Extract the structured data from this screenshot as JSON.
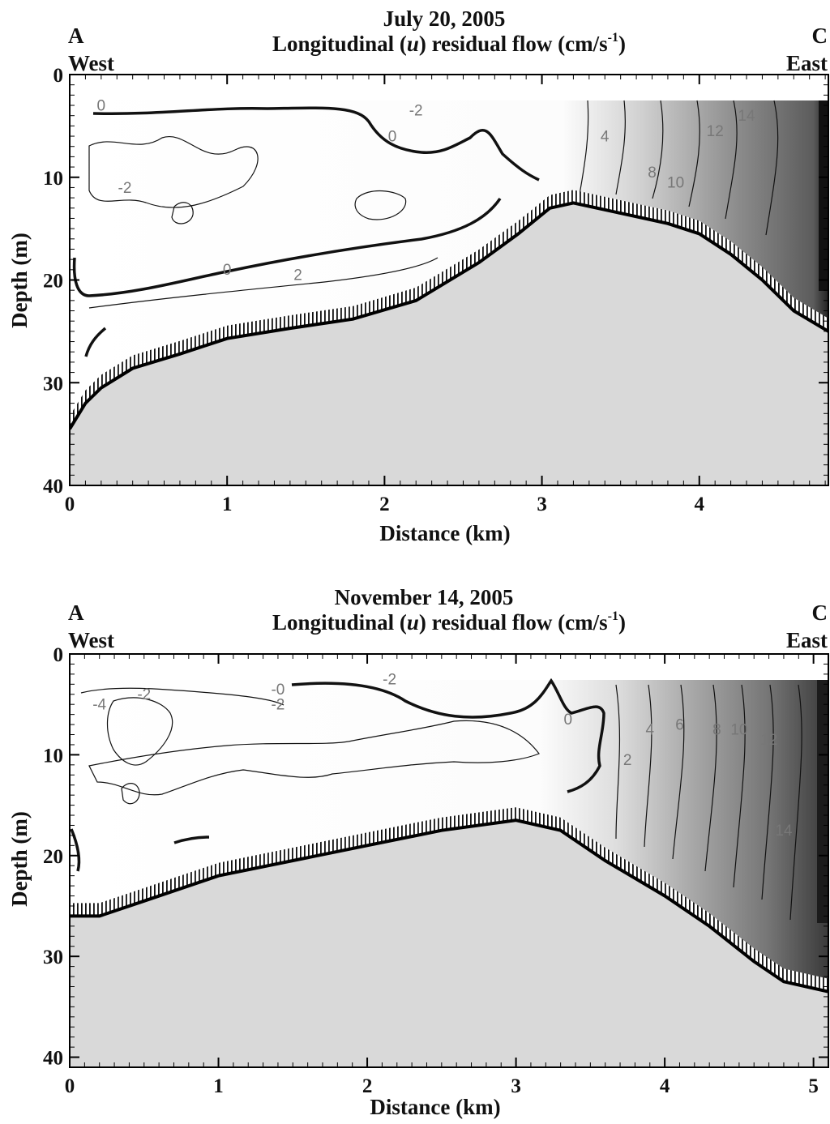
{
  "chart_data": [
    {
      "type": "heatmap",
      "subtype": "contour section",
      "title": "July 20, 2005",
      "subtitle_parts": [
        "Longitudinal (",
        "u",
        ") residual flow (cm/s",
        "-1",
        ")"
      ],
      "xlabel": "Distance (km)",
      "ylabel": "Depth (m)",
      "xlim": [
        0,
        4.82
      ],
      "ylim": [
        0,
        40
      ],
      "y_inverted": true,
      "xticks": [
        0,
        1,
        2,
        3,
        4
      ],
      "yticks": [
        0,
        10,
        20,
        30,
        40
      ],
      "corner_labels": {
        "left_top": "A",
        "left_bottom": "West",
        "right_top": "C",
        "right_bottom": "East"
      },
      "data_top_depth": 2.5,
      "bottom_profile": {
        "x": [
          0,
          0.1,
          0.2,
          0.4,
          0.7,
          1.0,
          1.4,
          1.8,
          2.2,
          2.6,
          2.85,
          3.05,
          3.2,
          3.5,
          3.8,
          4.0,
          4.2,
          4.4,
          4.6,
          4.82
        ],
        "depth": [
          34.5,
          32,
          30.5,
          28.6,
          27.2,
          25.7,
          24.7,
          23.8,
          22,
          18.3,
          15.5,
          13,
          12.5,
          13.5,
          14.5,
          15.5,
          17.5,
          20,
          23,
          25
        ]
      },
      "contour_labels": [
        {
          "value": "0",
          "x": 0.2,
          "depth": 3.5
        },
        {
          "value": "-2",
          "x": 0.35,
          "depth": 11.5
        },
        {
          "value": "0",
          "x": 2.05,
          "depth": 6.5
        },
        {
          "value": "-2",
          "x": 2.2,
          "depth": 4
        },
        {
          "value": "4",
          "x": 3.4,
          "depth": 6.5
        },
        {
          "value": "8",
          "x": 3.7,
          "depth": 10
        },
        {
          "value": "10",
          "x": 3.85,
          "depth": 11
        },
        {
          "value": "12",
          "x": 4.1,
          "depth": 6
        },
        {
          "value": "14",
          "x": 4.3,
          "depth": 4.5
        },
        {
          "value": "0",
          "x": 1.0,
          "depth": 19.5
        },
        {
          "value": "2",
          "x": 1.45,
          "depth": 20
        }
      ]
    },
    {
      "type": "heatmap",
      "subtype": "contour section",
      "title": "November 14, 2005",
      "subtitle_parts": [
        "Longitudinal (",
        "u",
        ") residual flow (cm/s",
        "-1",
        ")"
      ],
      "xlabel": "Distance (km)",
      "ylabel": "Depth (m)",
      "xlim": [
        0,
        5.1
      ],
      "ylim": [
        0,
        41
      ],
      "y_inverted": true,
      "xticks": [
        0,
        1,
        2,
        3,
        4,
        5
      ],
      "yticks": [
        0,
        10,
        20,
        30,
        40
      ],
      "corner_labels": {
        "left_top": "A",
        "left_bottom": "West",
        "right_top": "C",
        "right_bottom": "East"
      },
      "data_top_depth": 2.5,
      "bottom_profile": {
        "x": [
          0,
          0.2,
          0.5,
          1.0,
          1.5,
          2.0,
          2.5,
          3.0,
          3.3,
          3.6,
          4.0,
          4.3,
          4.6,
          4.8,
          5.1
        ],
        "depth": [
          26,
          26,
          24.5,
          22,
          20.5,
          19,
          17.5,
          16.5,
          17.5,
          20.5,
          24,
          27,
          30.5,
          32.5,
          33.5
        ]
      },
      "contour_labels": [
        {
          "value": "-4",
          "x": 0.2,
          "depth": 5.5
        },
        {
          "value": "-2",
          "x": 0.5,
          "depth": 4.5
        },
        {
          "value": "-0",
          "x": 1.4,
          "depth": 4
        },
        {
          "value": "-2",
          "x": 1.4,
          "depth": 5.5
        },
        {
          "value": "-2",
          "x": 2.15,
          "depth": 3
        },
        {
          "value": "0",
          "x": 3.35,
          "depth": 7
        },
        {
          "value": "2",
          "x": 3.75,
          "depth": 11
        },
        {
          "value": "4",
          "x": 3.9,
          "depth": 8
        },
        {
          "value": "6",
          "x": 4.1,
          "depth": 7.5
        },
        {
          "value": "8",
          "x": 4.35,
          "depth": 8
        },
        {
          "value": "10",
          "x": 4.5,
          "depth": 8
        },
        {
          "value": "12",
          "x": 4.7,
          "depth": 9
        },
        {
          "value": "14",
          "x": 4.8,
          "depth": 18
        }
      ]
    }
  ]
}
